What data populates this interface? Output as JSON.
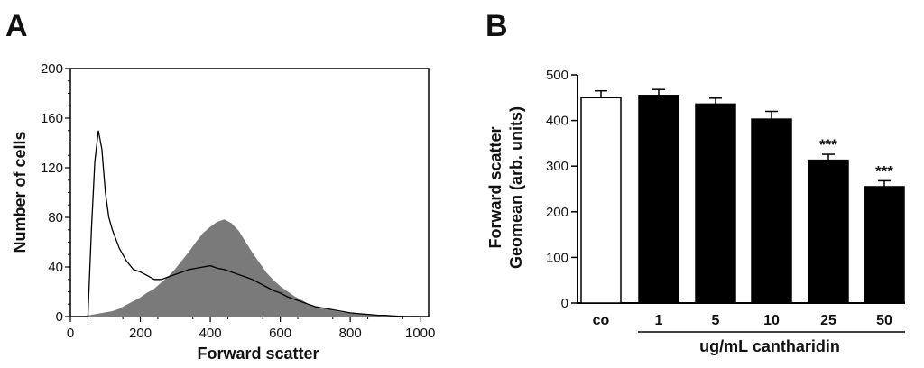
{
  "chart_data": [
    {
      "panel": "A",
      "type": "area",
      "title": "",
      "xlabel": "Forward scatter",
      "ylabel": "Number of cells",
      "xlim": [
        0,
        1024
      ],
      "ylim": [
        0,
        200
      ],
      "xticks": [
        "0",
        "200",
        "400",
        "600",
        "800",
        "1000"
      ],
      "yticks": [
        "0",
        "40",
        "80",
        "120",
        "160",
        "200"
      ],
      "series": [
        {
          "style": "filled-gray",
          "color": "#7a7a7a",
          "x": [
            40,
            60,
            80,
            100,
            120,
            140,
            160,
            180,
            200,
            220,
            240,
            260,
            280,
            300,
            320,
            340,
            360,
            380,
            400,
            420,
            440,
            460,
            480,
            500,
            520,
            540,
            560,
            580,
            600,
            620,
            640,
            660,
            680,
            700,
            720,
            740,
            760,
            780,
            800,
            820,
            840,
            860,
            880,
            900,
            920,
            960,
            1000
          ],
          "y": [
            0,
            1,
            2,
            3,
            4,
            6,
            9,
            12,
            15,
            19,
            22,
            27,
            32,
            38,
            45,
            52,
            60,
            67,
            72,
            76,
            78,
            75,
            69,
            60,
            51,
            43,
            35,
            29,
            24,
            20,
            16,
            13,
            10,
            8,
            6,
            5,
            4,
            3,
            2.5,
            2,
            1.5,
            1,
            1,
            0.5,
            0.5,
            0,
            0
          ]
        },
        {
          "style": "outline-black",
          "color": "#000000",
          "x": [
            40,
            50,
            60,
            70,
            80,
            90,
            100,
            110,
            120,
            140,
            160,
            180,
            200,
            220,
            240,
            260,
            280,
            300,
            320,
            340,
            360,
            380,
            400,
            420,
            440,
            460,
            480,
            500,
            520,
            540,
            560,
            580,
            600,
            620,
            640,
            660,
            680,
            700,
            720,
            740,
            760,
            780,
            800,
            820,
            840,
            860,
            880,
            900,
            920,
            960,
            1000
          ],
          "y": [
            0,
            0,
            70,
            125,
            150,
            135,
            100,
            80,
            70,
            55,
            45,
            38,
            36,
            33,
            30,
            30,
            32,
            34,
            36,
            38,
            39,
            40,
            41,
            39,
            38,
            36,
            34,
            32,
            30,
            27,
            24,
            21,
            19,
            16,
            14,
            12,
            10,
            8,
            7,
            6,
            5,
            4,
            3,
            2.5,
            2,
            1.5,
            1,
            1,
            0.5,
            0,
            0
          ]
        }
      ]
    },
    {
      "panel": "B",
      "type": "bar",
      "title": "",
      "xlabel": "ug/mL cantharidin",
      "ylabel_lines": [
        "Forward scatter",
        "Geomean (arb. units)"
      ],
      "categories": [
        "co",
        "1",
        "5",
        "10",
        "25",
        "50"
      ],
      "values": [
        450,
        455,
        436,
        403,
        313,
        255
      ],
      "errors": [
        15,
        13,
        13,
        17,
        13,
        13
      ],
      "fills": [
        "#ffffff",
        "#000000",
        "#000000",
        "#000000",
        "#000000",
        "#000000"
      ],
      "annotations": [
        "",
        "",
        "",
        "",
        "***",
        "***"
      ],
      "ylim": [
        0,
        500
      ],
      "yticks": [
        "0",
        "100",
        "200",
        "300",
        "400",
        "500"
      ]
    }
  ]
}
